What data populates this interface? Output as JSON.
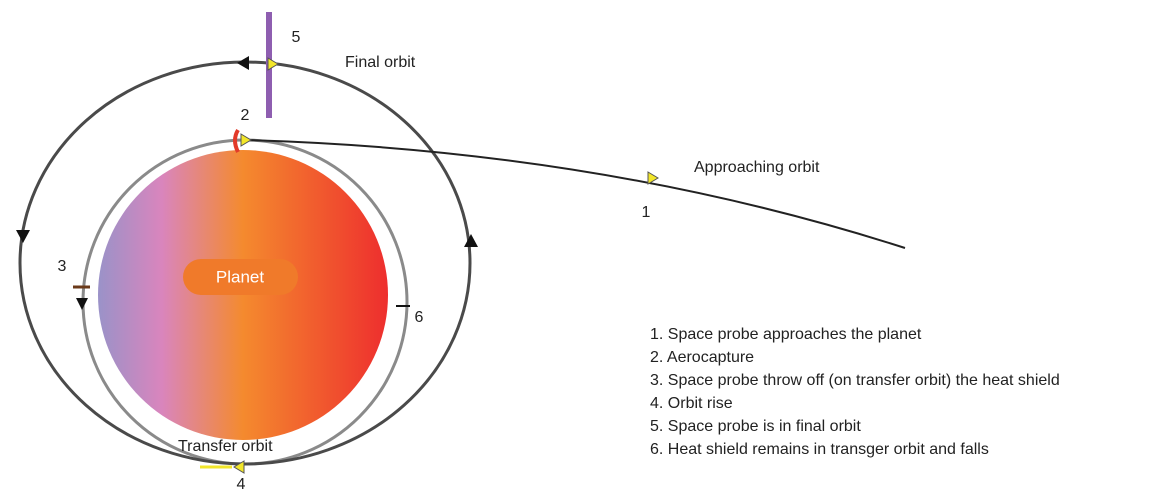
{
  "diagram": {
    "planet": "Planet",
    "orbits": {
      "final": "Final orbit",
      "approaching": "Approaching orbit",
      "transfer": "Transfer orbit"
    },
    "markers": [
      "1",
      "2",
      "3",
      "4",
      "5",
      "6"
    ],
    "legend": [
      "1. Space probe approaches the planet",
      "2. Aerocapture",
      "3. Space probe throw off (on transfer orbit) the heat shield",
      "4. Orbit rise",
      "5. Space probe is in final orbit",
      "6. Heat shield remains in transger orbit and falls"
    ]
  }
}
